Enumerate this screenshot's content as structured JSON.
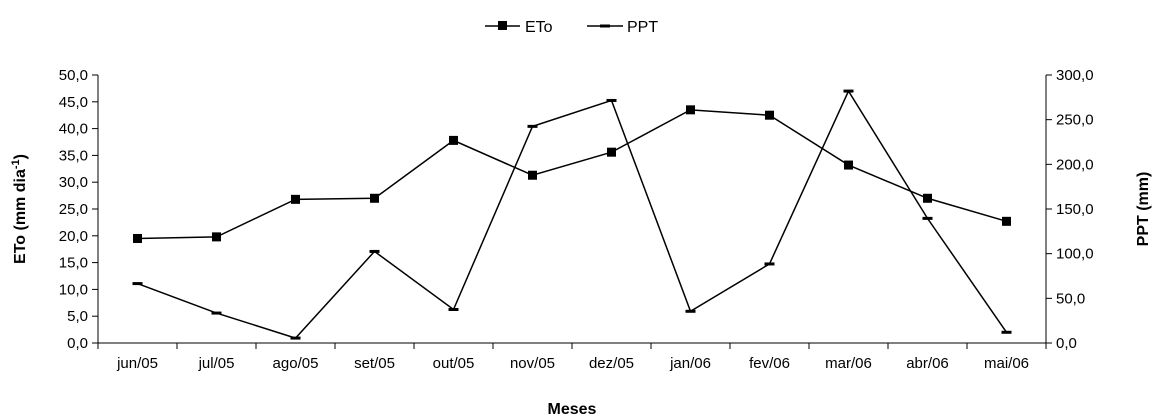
{
  "chart_data": {
    "type": "line",
    "xlabel": "Meses",
    "ylabel_left": "ETo (mm dia-¹)",
    "ylabel_right": "PPT (mm)",
    "categories": [
      "jun/05",
      "jul/05",
      "ago/05",
      "set/05",
      "out/05",
      "nov/05",
      "dez/05",
      "jan/06",
      "fev/06",
      "mar/06",
      "abr/06",
      "mai/06"
    ],
    "y_left": {
      "min": 0,
      "max": 50,
      "step": 5,
      "ticks": [
        "0,0",
        "5,0",
        "10,0",
        "15,0",
        "20,0",
        "25,0",
        "30,0",
        "35,0",
        "40,0",
        "45,0",
        "50,0"
      ]
    },
    "y_right": {
      "min": 0,
      "max": 300,
      "step": 50,
      "ticks": [
        "0,0",
        "50,0",
        "100,0",
        "150,0",
        "200,0",
        "250,0",
        "300,0"
      ]
    },
    "legend_position": "top-center",
    "grid": false,
    "series": [
      {
        "name": "ETo",
        "axis": "left",
        "marker": "square",
        "values": [
          19.5,
          19.8,
          26.8,
          27.0,
          37.8,
          31.3,
          35.6,
          43.5,
          42.5,
          33.2,
          27.0,
          22.7
        ]
      },
      {
        "name": "PPT",
        "axis": "right",
        "marker": "dash",
        "values": [
          66.5,
          33.5,
          5.5,
          102.5,
          37.5,
          242.5,
          271.5,
          35.5,
          88.5,
          282.0,
          139.5,
          12.0
        ]
      }
    ]
  }
}
